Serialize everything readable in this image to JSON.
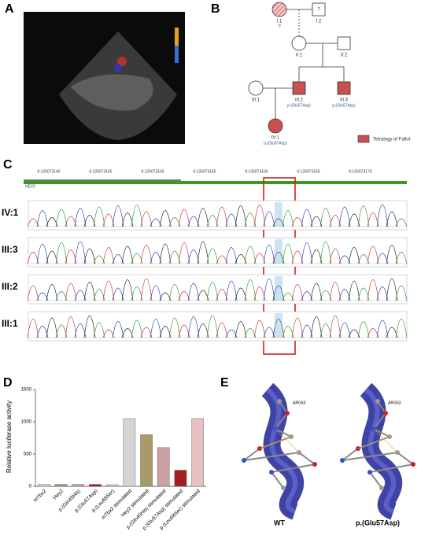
{
  "panels": {
    "A": "A",
    "B": "B",
    "C": "C",
    "D": "D",
    "E": "E"
  },
  "pedigree": {
    "nodes": [
      {
        "id": "I:1",
        "note": "?"
      },
      {
        "id": "I:2",
        "note": "?"
      },
      {
        "id": "II:1"
      },
      {
        "id": "II:2"
      },
      {
        "id": "III:1"
      },
      {
        "id": "III:2",
        "variant": "p.(Glu57Asp)"
      },
      {
        "id": "III:3",
        "variant": "p.(Glu57Asp)"
      },
      {
        "id": "IV:1",
        "variant": "p.(Glu57Asp)"
      }
    ],
    "legend": "Tetralogy of Fallot"
  },
  "chromatogram": {
    "gene": "HEY2",
    "coordinates": [
      "6:126073140",
      "6:126073145",
      "6:126073150",
      "6:126073155",
      "6:126073160",
      "6:126073165",
      "6:126073170"
    ],
    "rows": [
      "IV:1",
      "III:3",
      "III:2",
      "III:1"
    ]
  },
  "structure": {
    "residue": "ARG53",
    "labels": [
      "WT",
      "p.(Glu57Asp)"
    ]
  },
  "chart_data": {
    "type": "bar",
    "ylabel": "Relative luciferase activity",
    "categories": [
      "mTbx2",
      "Hey2",
      "p.(Gln45His)",
      "p.(Glu57Asp)",
      "p.(Leu68Ser)",
      "mTbx2 stimulated",
      "Hey2 stimulated",
      "p.(Gln45His) stimulated",
      "p.(Glu57Asp) stimulated",
      "p.(Leu68Ser) stimulated"
    ],
    "values": [
      30,
      30,
      30,
      30,
      25,
      1050,
      800,
      600,
      250,
      1050
    ],
    "colors": [
      "#d4d4d4",
      "#a89a6a",
      "#c9a0a4",
      "#a0201e",
      "#e8c2c2",
      "#d4d4d4",
      "#a89a6a",
      "#c9a0a4",
      "#a0201e",
      "#e8c2c2"
    ],
    "ylim": [
      0,
      1500
    ],
    "yticks": [
      0,
      500,
      1000,
      1500
    ]
  }
}
